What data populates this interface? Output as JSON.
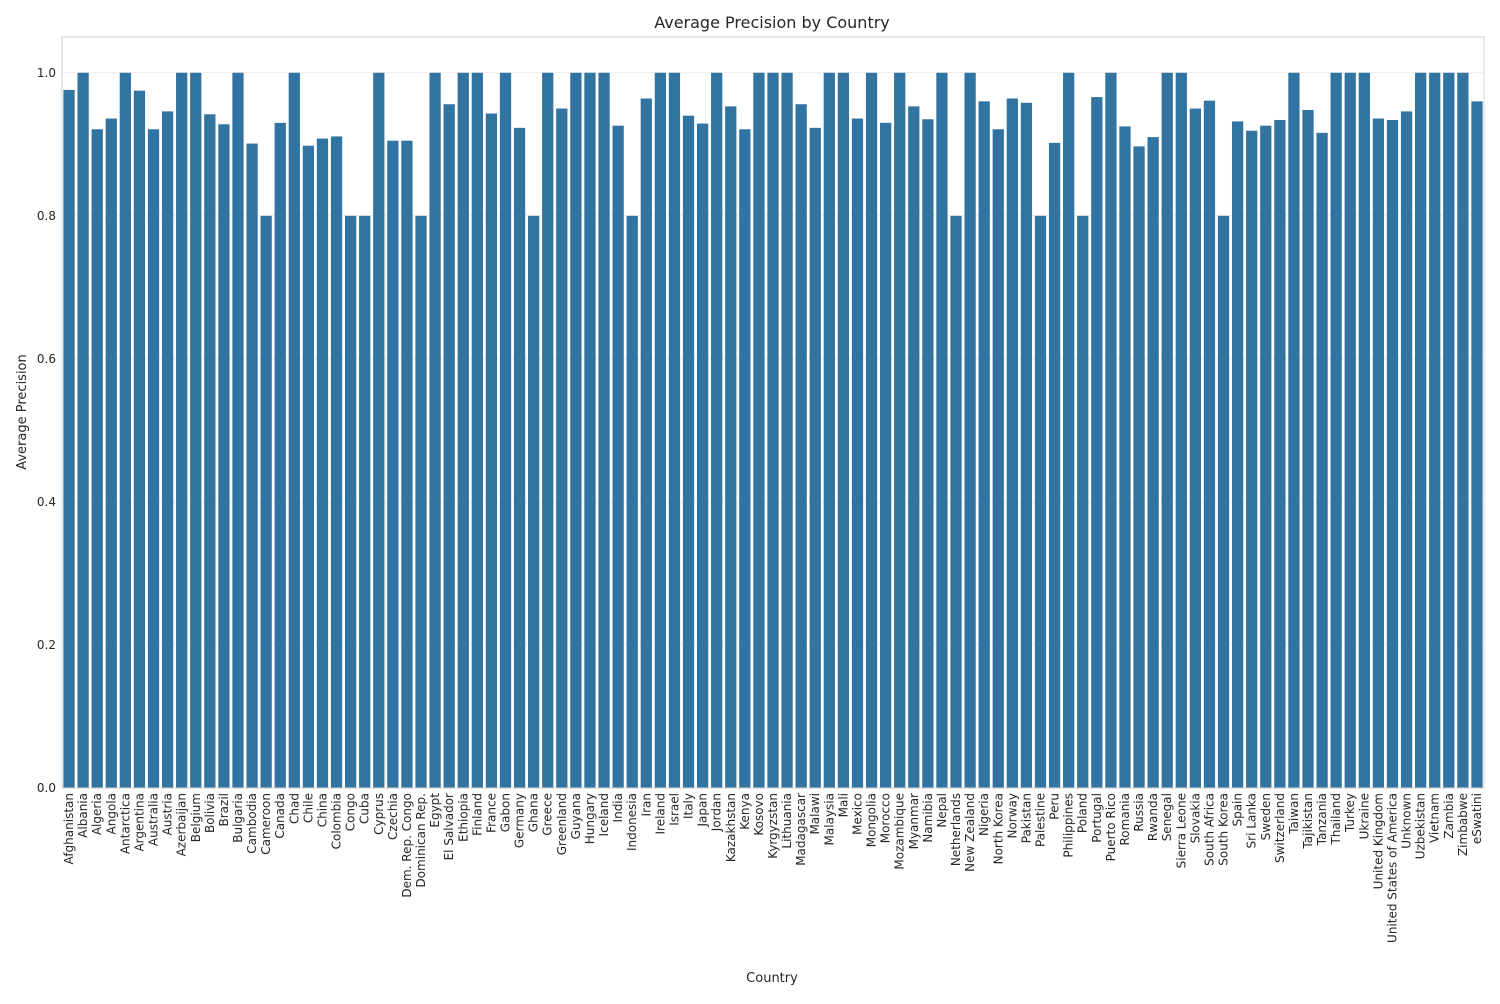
{
  "chart_data": {
    "type": "bar",
    "title": "Average Precision by Country",
    "xlabel": "Country",
    "ylabel": "Average Precision",
    "ylim": [
      0,
      1.05
    ],
    "yticks": [
      0.0,
      0.2,
      0.4,
      0.6,
      0.8,
      1.0
    ],
    "ytick_labels": [
      "0.0",
      "0.2",
      "0.4",
      "0.6",
      "0.8",
      "1.0"
    ],
    "grid": true,
    "bar_color": "#3274a1",
    "grid_color": "#ebebeb",
    "categories": [
      "Afghanistan",
      "Albania",
      "Algeria",
      "Angola",
      "Antarctica",
      "Argentina",
      "Australia",
      "Austria",
      "Azerbaijan",
      "Belgium",
      "Bolivia",
      "Brazil",
      "Bulgaria",
      "Cambodia",
      "Cameroon",
      "Canada",
      "Chad",
      "Chile",
      "China",
      "Colombia",
      "Congo",
      "Cuba",
      "Cyprus",
      "Czechia",
      "Dem. Rep. Congo",
      "Dominican Rep.",
      "Egypt",
      "El Salvador",
      "Ethiopia",
      "Finland",
      "France",
      "Gabon",
      "Germany",
      "Ghana",
      "Greece",
      "Greenland",
      "Guyana",
      "Hungary",
      "Iceland",
      "India",
      "Indonesia",
      "Iran",
      "Ireland",
      "Israel",
      "Italy",
      "Japan",
      "Jordan",
      "Kazakhstan",
      "Kenya",
      "Kosovo",
      "Kyrgyzstan",
      "Lithuania",
      "Madagascar",
      "Malawi",
      "Malaysia",
      "Mali",
      "Mexico",
      "Mongolia",
      "Morocco",
      "Mozambique",
      "Myanmar",
      "Namibia",
      "Nepal",
      "Netherlands",
      "New Zealand",
      "Nigeria",
      "North Korea",
      "Norway",
      "Pakistan",
      "Palestine",
      "Peru",
      "Philippines",
      "Poland",
      "Portugal",
      "Puerto Rico",
      "Romania",
      "Russia",
      "Rwanda",
      "Senegal",
      "Sierra Leone",
      "Slovakia",
      "South Africa",
      "South Korea",
      "Spain",
      "Sri Lanka",
      "Sweden",
      "Switzerland",
      "Taiwan",
      "Tajikistan",
      "Tanzania",
      "Thailand",
      "Turkey",
      "Ukraine",
      "United Kingdom",
      "United States of America",
      "Unknown",
      "Uzbekistan",
      "Vietnam",
      "Zambia",
      "Zimbabwe",
      "eSwatini"
    ],
    "values": [
      0.976,
      1.0,
      0.921,
      0.936,
      1.0,
      0.975,
      0.921,
      0.946,
      1.0,
      1.0,
      0.942,
      0.928,
      1.0,
      0.901,
      0.8,
      0.93,
      1.0,
      0.898,
      0.908,
      0.911,
      0.8,
      0.8,
      1.0,
      0.905,
      0.905,
      0.8,
      1.0,
      0.956,
      1.0,
      1.0,
      0.943,
      1.0,
      0.923,
      0.8,
      1.0,
      0.95,
      1.0,
      1.0,
      1.0,
      0.926,
      0.8,
      0.964,
      1.0,
      1.0,
      0.94,
      0.929,
      1.0,
      0.953,
      0.921,
      1.0,
      1.0,
      1.0,
      0.956,
      0.923,
      1.0,
      1.0,
      0.936,
      1.0,
      0.93,
      1.0,
      0.953,
      0.935,
      1.0,
      0.8,
      1.0,
      0.96,
      0.921,
      0.964,
      0.958,
      0.8,
      0.902,
      1.0,
      0.8,
      0.966,
      1.0,
      0.925,
      0.897,
      0.91,
      1.0,
      1.0,
      0.95,
      0.961,
      0.8,
      0.932,
      0.919,
      0.926,
      0.934,
      1.0,
      0.948,
      0.916,
      1.0,
      1.0,
      1.0,
      0.936,
      0.934,
      0.946,
      1.0,
      1.0,
      1.0,
      1.0,
      0.96
    ]
  }
}
